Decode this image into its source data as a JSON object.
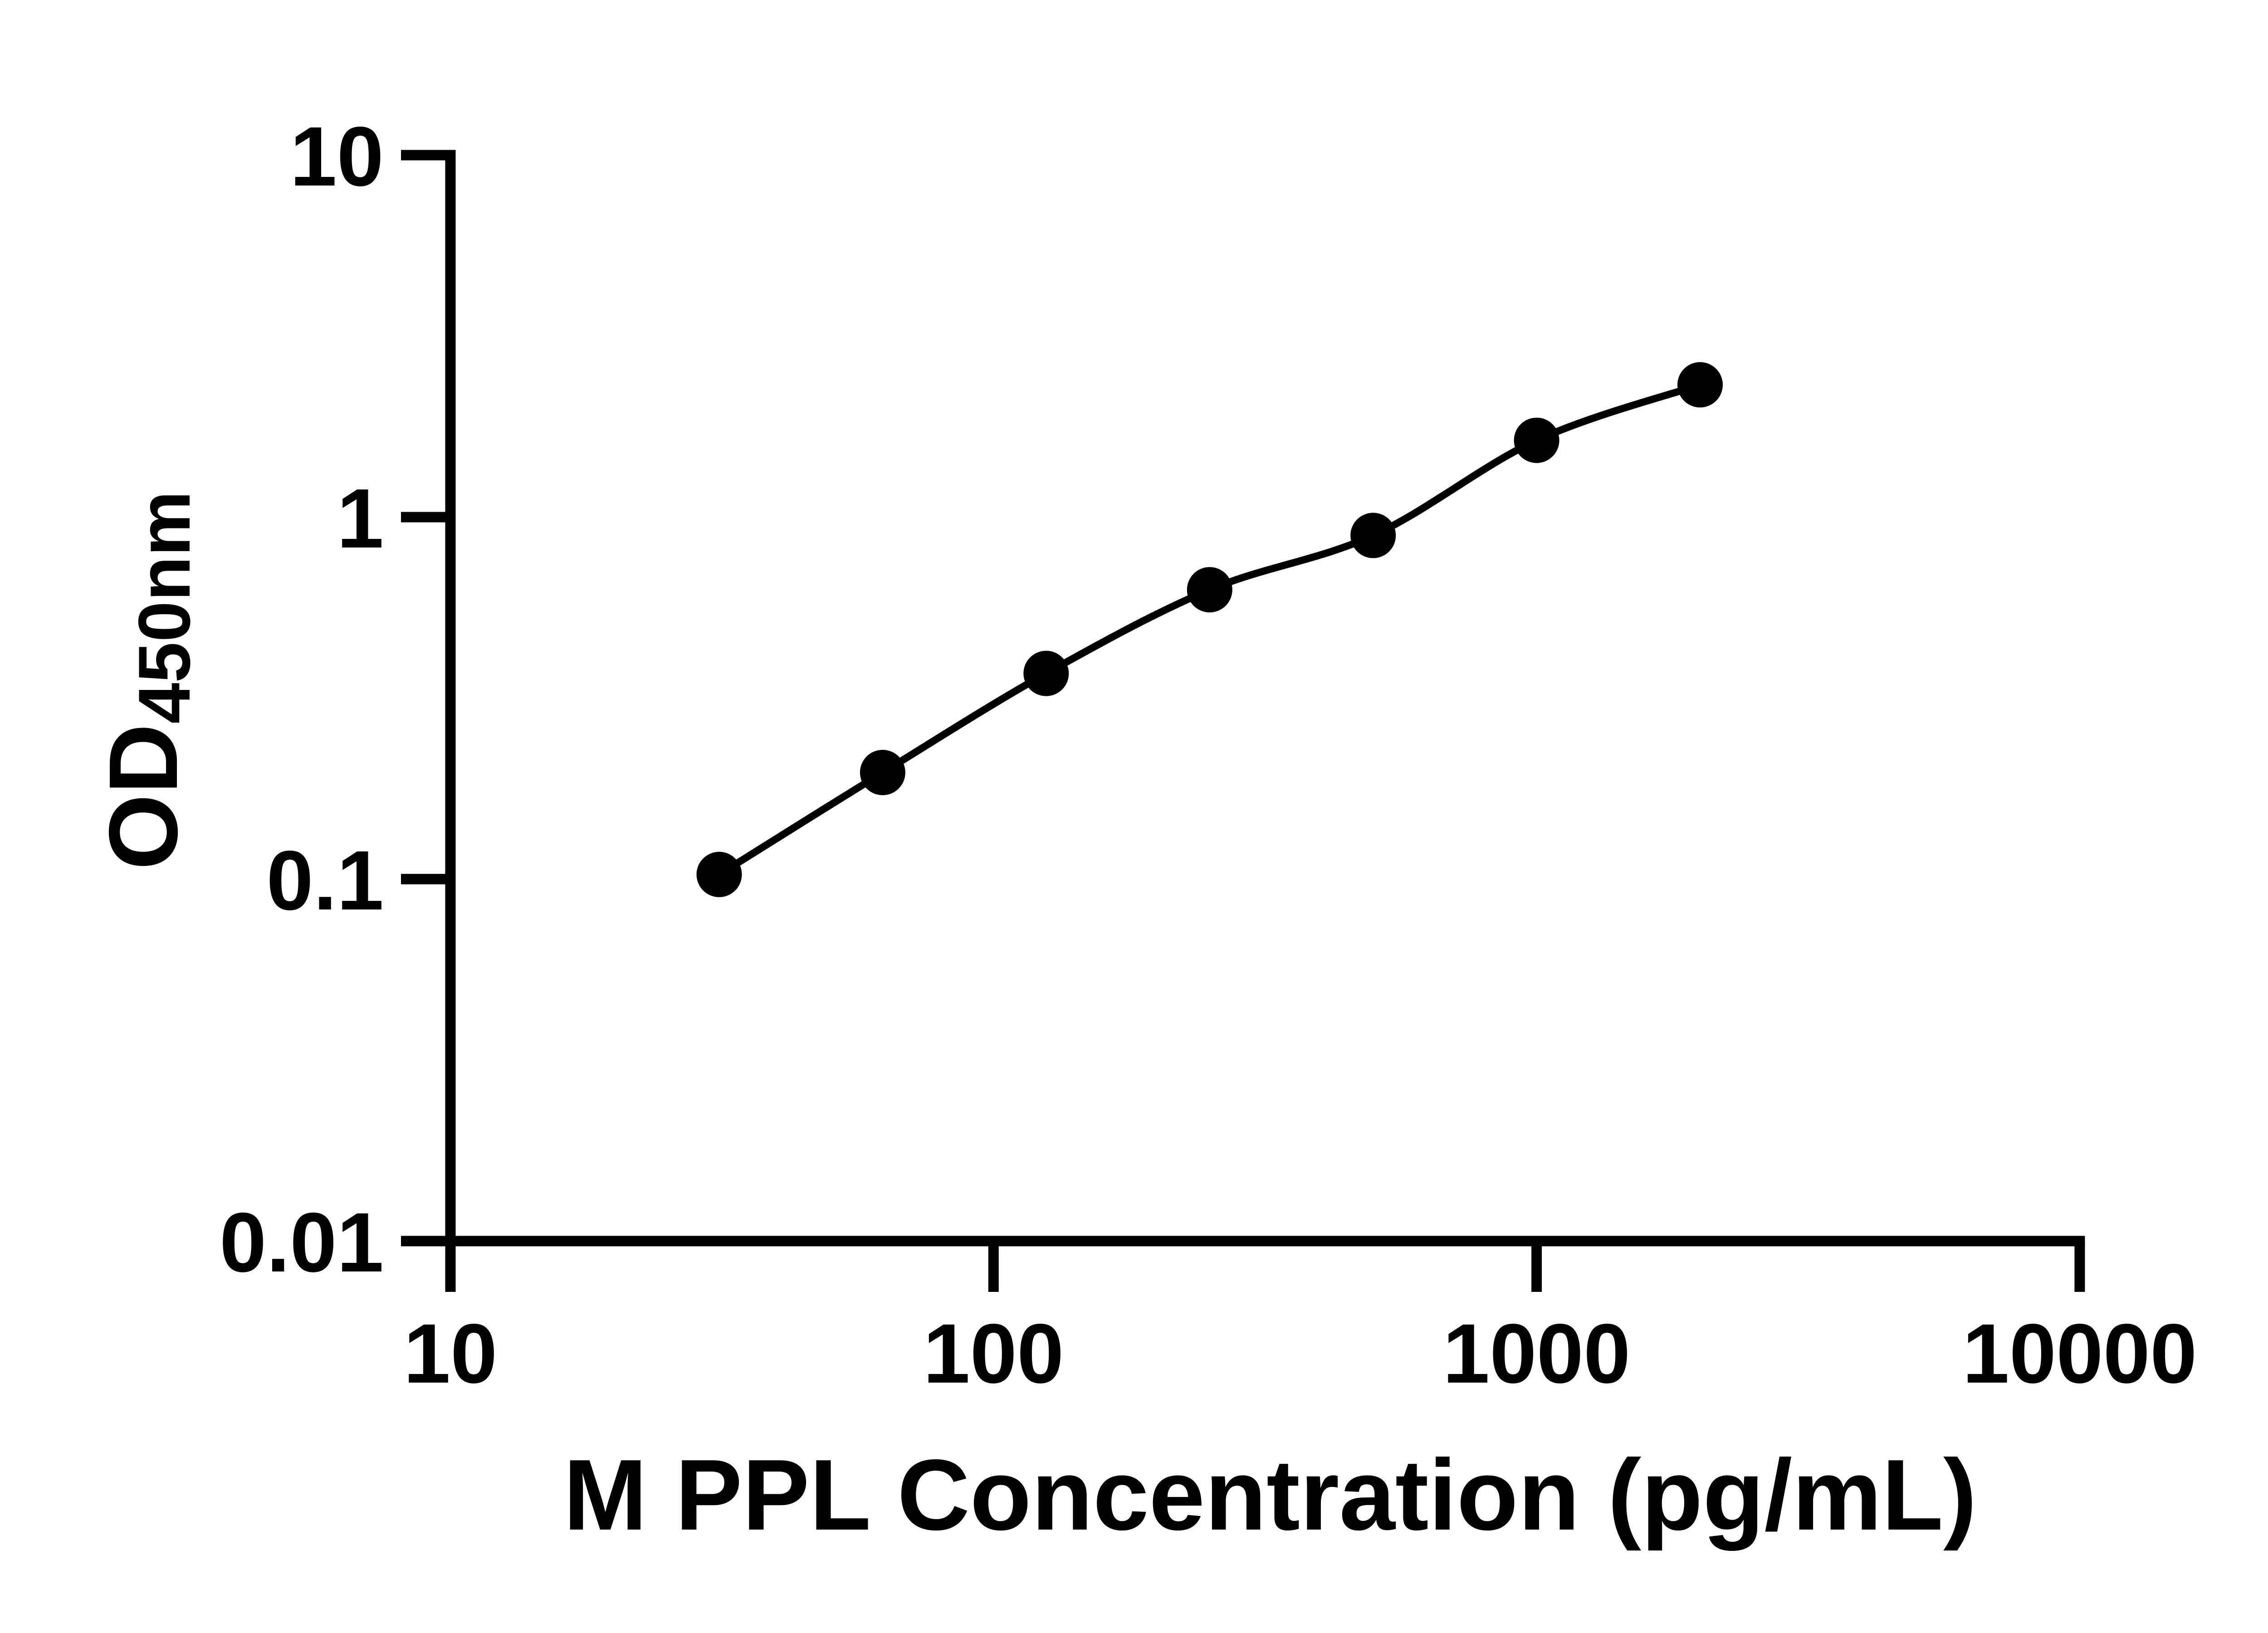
{
  "chart_data": {
    "type": "line",
    "title": "",
    "xlabel": "M PPL Concentration (pg/mL)",
    "ylabel": "OD450nm",
    "ylabel_main": "OD",
    "ylabel_sub": "450nm",
    "x_scale": "log",
    "y_scale": "log",
    "xlim": [
      10,
      10000
    ],
    "ylim": [
      0.01,
      10
    ],
    "x_ticks": [
      10,
      100,
      1000,
      10000
    ],
    "y_ticks": [
      10,
      1,
      0.1,
      0.01
    ],
    "x_tick_labels": [
      "10",
      "100",
      "1000",
      "10000"
    ],
    "y_tick_labels": [
      "10",
      "1",
      "0.1",
      "0.01"
    ],
    "grid": false,
    "legend": "none",
    "marker": "filled-circle",
    "series": [
      {
        "x": [
          31.25,
          62.5,
          125,
          250,
          500,
          1000,
          2000
        ],
        "y": [
          0.103,
          0.197,
          0.37,
          0.63,
          0.89,
          1.63,
          2.32
        ]
      }
    ],
    "colors": {
      "line": "#000000",
      "marker": "#000000",
      "text": "#000000",
      "background": "#ffffff"
    }
  }
}
